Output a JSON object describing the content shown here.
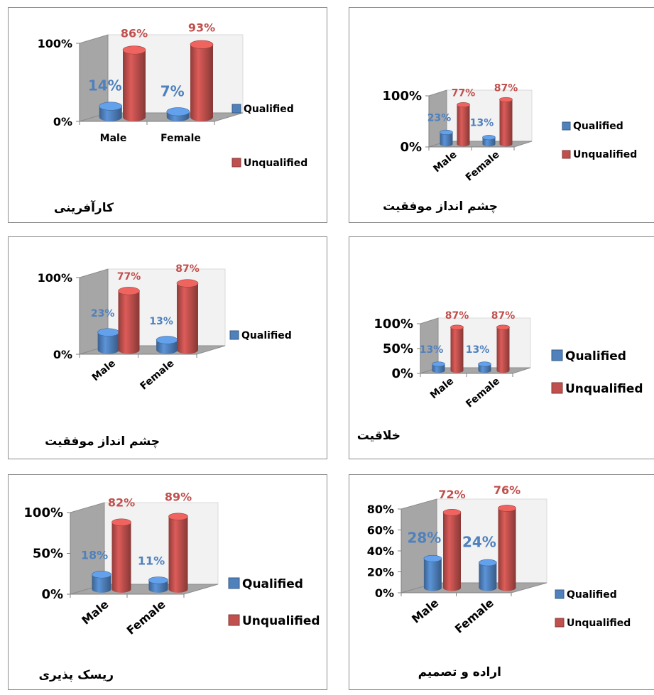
{
  "colors": {
    "qualified": "#4f81bd",
    "unqualified": "#c0504d",
    "qualified_label": "#4f81bd",
    "unqualified_label": "#c0504d"
  },
  "chart_data": [
    {
      "type": "bar",
      "title": "کارآفرینی",
      "categories": [
        "Male",
        "Female"
      ],
      "ylim": [
        0,
        100
      ],
      "yticks": [
        "0%",
        "100%"
      ],
      "series": [
        {
          "name": "Qualified",
          "values": [
            14,
            7
          ],
          "labels": [
            "14%",
            "7%"
          ]
        },
        {
          "name": "Unqualified",
          "values": [
            86,
            93
          ],
          "labels": [
            "86%",
            "93%"
          ]
        }
      ],
      "legend": [
        "Qualified",
        "Unqualified"
      ]
    },
    {
      "type": "bar",
      "title": "چشم انداز موفقیت",
      "categories": [
        "Male",
        "Female"
      ],
      "ylim": [
        0,
        100
      ],
      "yticks": [
        "0%",
        "100%"
      ],
      "series": [
        {
          "name": "Qualified",
          "values": [
            23,
            13
          ],
          "labels": [
            "23%",
            "13%"
          ]
        },
        {
          "name": "Unqualified",
          "values": [
            77,
            87
          ],
          "labels": [
            "77%",
            "87%"
          ]
        }
      ],
      "legend": [
        "Qualified",
        "Unqualified"
      ]
    },
    {
      "type": "bar",
      "title": "چشم انداز موفقیت",
      "categories": [
        "Male",
        "Female"
      ],
      "ylim": [
        0,
        100
      ],
      "yticks": [
        "0%",
        "100%"
      ],
      "series": [
        {
          "name": "Qualified",
          "values": [
            23,
            13
          ],
          "labels": [
            "23%",
            "13%"
          ]
        },
        {
          "values": [
            77,
            87
          ],
          "labels": [
            "77%",
            "87%"
          ]
        }
      ],
      "legend": [
        "Qualified"
      ]
    },
    {
      "type": "bar",
      "title": "خلاقیت",
      "categories": [
        "Male",
        "Female"
      ],
      "ylim": [
        0,
        100
      ],
      "yticks": [
        "0%",
        "50%",
        "100%"
      ],
      "series": [
        {
          "name": "Qualified",
          "values": [
            13,
            13
          ],
          "labels": [
            "13%",
            "13%"
          ]
        },
        {
          "name": "Unqualified",
          "values": [
            87,
            87
          ],
          "labels": [
            "87%",
            "87%"
          ]
        }
      ],
      "legend": [
        "Qualified",
        "Unqualified"
      ]
    },
    {
      "type": "bar",
      "title": "ریسک پذیری",
      "categories": [
        "Male",
        "Female"
      ],
      "ylim": [
        0,
        100
      ],
      "yticks": [
        "0%",
        "50%",
        "100%"
      ],
      "series": [
        {
          "name": "Qualified",
          "values": [
            18,
            11
          ],
          "labels": [
            "18%",
            "11%"
          ]
        },
        {
          "name": "Unqualified",
          "values": [
            82,
            89
          ],
          "labels": [
            "82%",
            "89%"
          ]
        }
      ],
      "legend": [
        "Qualified",
        "Unqualified"
      ]
    },
    {
      "type": "bar",
      "title": "اراده و تصمیم",
      "categories": [
        "Male",
        "Female"
      ],
      "ylim": [
        0,
        80
      ],
      "yticks": [
        "0%",
        "20%",
        "40%",
        "60%",
        "80%"
      ],
      "series": [
        {
          "name": "Qualified",
          "values": [
            28,
            24
          ],
          "labels": [
            "28%",
            "24%"
          ]
        },
        {
          "name": "Unqualified",
          "values": [
            72,
            76
          ],
          "labels": [
            "72%",
            "76%"
          ]
        }
      ],
      "legend": [
        "Qualified",
        "Unqualified"
      ]
    }
  ]
}
